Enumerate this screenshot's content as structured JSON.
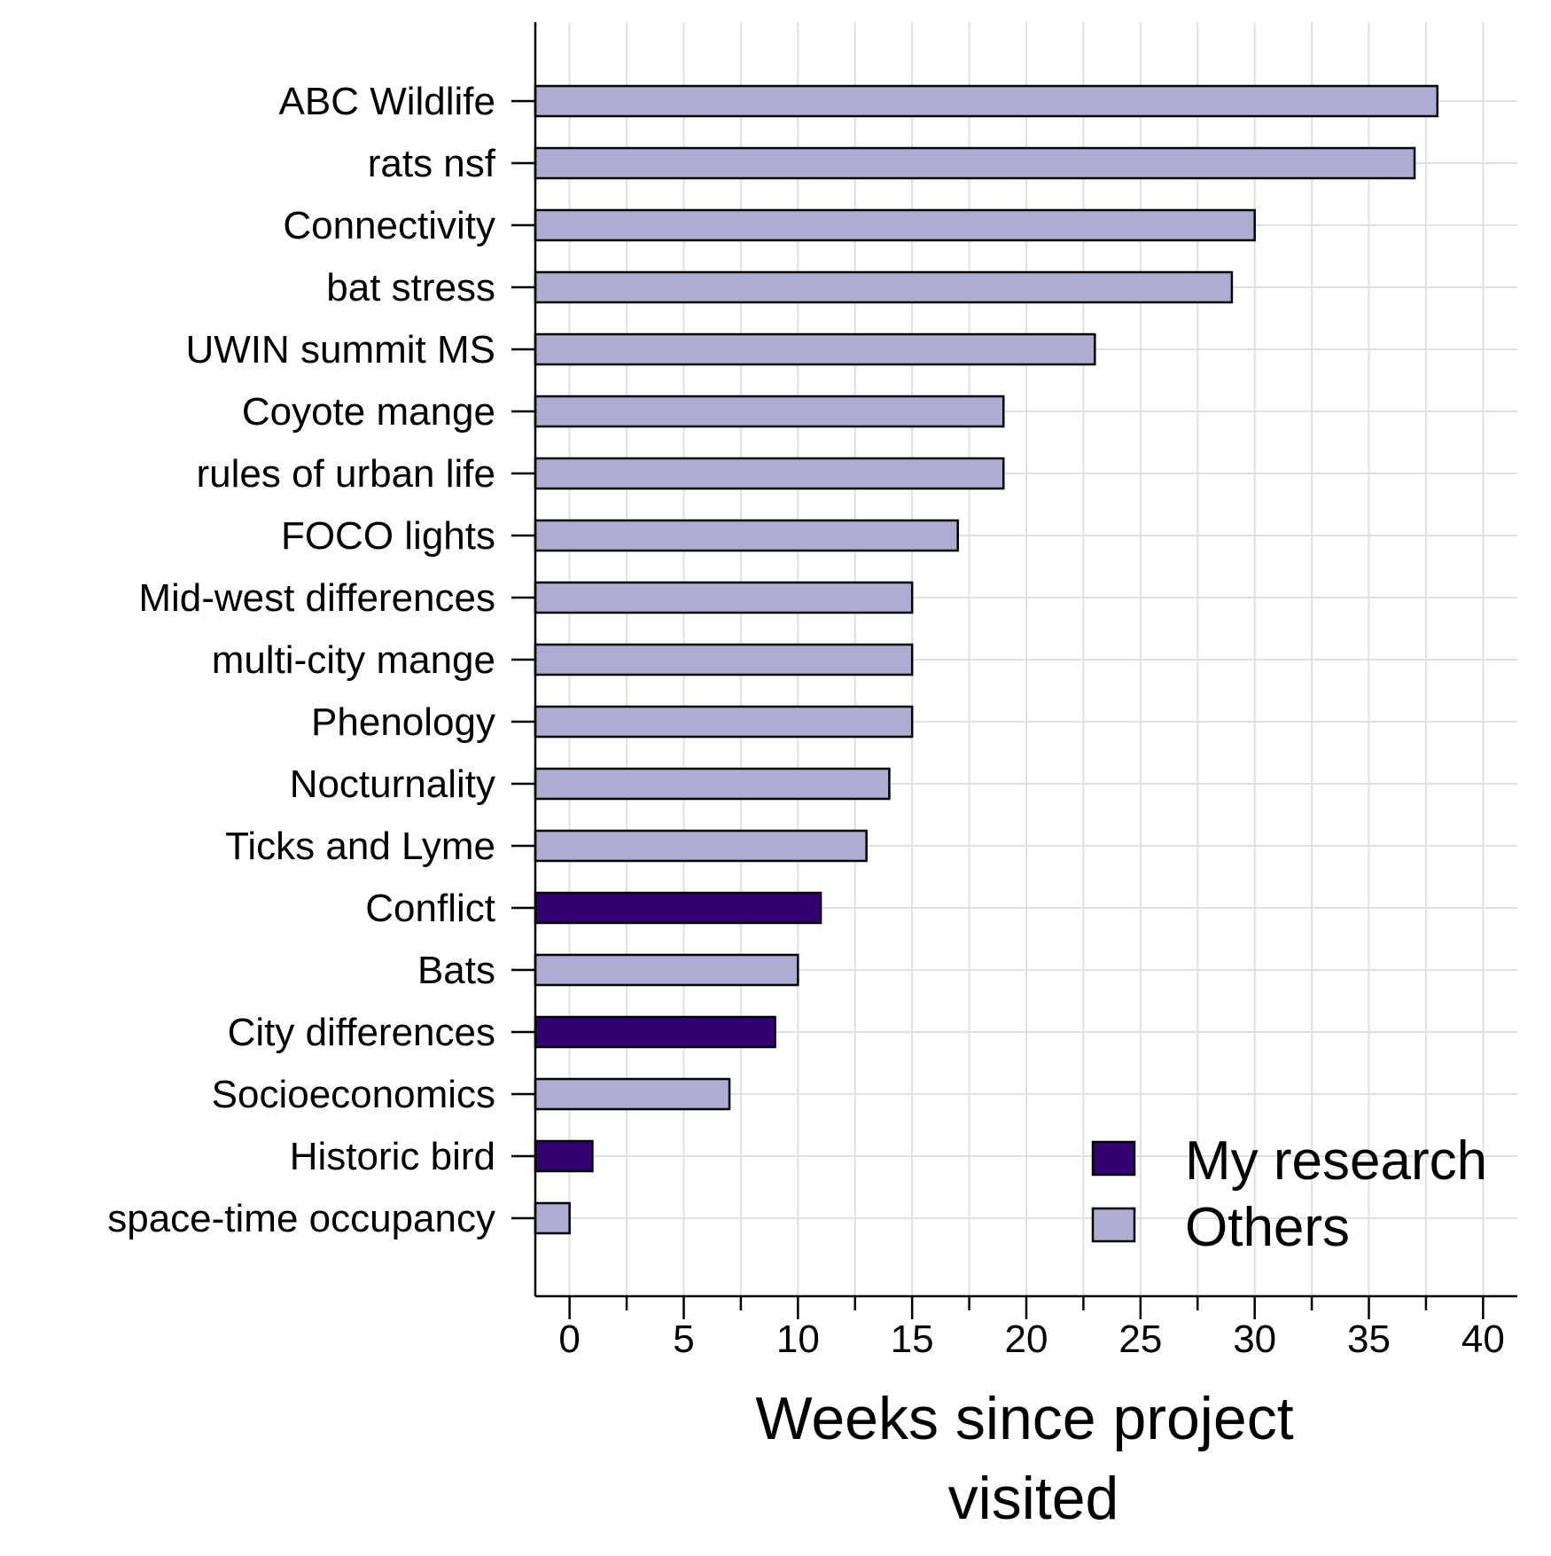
{
  "chart_data": {
    "type": "bar",
    "orientation": "horizontal",
    "xlabel_lines": [
      "Weeks since project",
      "visited"
    ],
    "xlim": [
      -1.5,
      41.5
    ],
    "xticks": [
      0,
      5,
      10,
      15,
      20,
      25,
      30,
      35,
      40
    ],
    "grid": true,
    "legend": {
      "placement": "bottom-right",
      "entries": [
        {
          "label": "My research",
          "color": "#330072"
        },
        {
          "label": "Others",
          "color": "#adadd4"
        }
      ]
    },
    "bars": [
      {
        "category": "ABC Wildlife",
        "value": 38,
        "group": "Others"
      },
      {
        "category": "rats nsf",
        "value": 37,
        "group": "Others"
      },
      {
        "category": "Connectivity",
        "value": 30,
        "group": "Others"
      },
      {
        "category": "bat stress",
        "value": 29,
        "group": "Others"
      },
      {
        "category": "UWIN summit MS",
        "value": 23,
        "group": "Others"
      },
      {
        "category": "Coyote mange",
        "value": 19,
        "group": "Others"
      },
      {
        "category": "rules of urban life",
        "value": 19,
        "group": "Others"
      },
      {
        "category": "FOCO lights",
        "value": 17,
        "group": "Others"
      },
      {
        "category": "Mid-west differences",
        "value": 15,
        "group": "Others"
      },
      {
        "category": "multi-city mange",
        "value": 15,
        "group": "Others"
      },
      {
        "category": "Phenology",
        "value": 15,
        "group": "Others"
      },
      {
        "category": "Nocturnality",
        "value": 14,
        "group": "Others"
      },
      {
        "category": "Ticks and Lyme",
        "value": 13,
        "group": "Others"
      },
      {
        "category": "Conflict",
        "value": 11,
        "group": "My research"
      },
      {
        "category": "Bats",
        "value": 10,
        "group": "Others"
      },
      {
        "category": "City differences",
        "value": 9,
        "group": "My research"
      },
      {
        "category": "Socioeconomics",
        "value": 7,
        "group": "Others"
      },
      {
        "category": "Historic bird",
        "value": 1,
        "group": "My research"
      },
      {
        "category": "space-time occupancy",
        "value": 0,
        "group": "Others"
      }
    ]
  },
  "colors": {
    "my_research": "#330072",
    "others": "#adadd4",
    "grid": "#e0e0e0",
    "axis": "#000000"
  }
}
